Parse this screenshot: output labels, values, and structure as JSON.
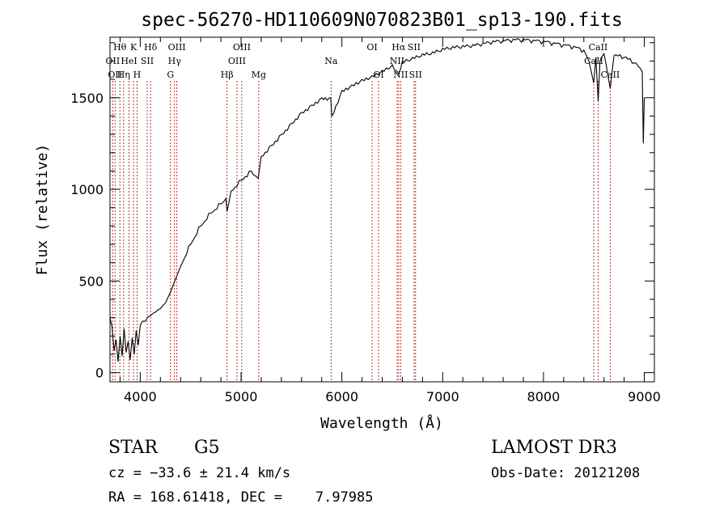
{
  "chart_data": {
    "type": "line",
    "title": "spec-56270-HD110609N070823B01_sp13-190.fits",
    "xlabel": "Wavelength (Å)",
    "ylabel": "Flux (relative)",
    "xlim": [
      3700,
      9100
    ],
    "ylim": [
      -50,
      1830
    ],
    "xticks": [
      4000,
      5000,
      6000,
      7000,
      8000,
      9000
    ],
    "yticks": [
      0,
      500,
      1000,
      1500
    ],
    "x_minor_step": 200,
    "y_minor_step": 100,
    "series": [
      {
        "name": "flux",
        "x": [
          3700,
          3720,
          3740,
          3760,
          3780,
          3800,
          3820,
          3840,
          3860,
          3880,
          3900,
          3920,
          3940,
          3960,
          3980,
          4000,
          4050,
          4100,
          4150,
          4200,
          4250,
          4300,
          4350,
          4400,
          4500,
          4600,
          4700,
          4800,
          4850,
          4861,
          4900,
          5000,
          5100,
          5170,
          5200,
          5300,
          5400,
          5500,
          5600,
          5700,
          5800,
          5890,
          5900,
          6000,
          6100,
          6200,
          6300,
          6400,
          6500,
          6563,
          6600,
          6700,
          6800,
          6900,
          7000,
          7100,
          7200,
          7300,
          7400,
          7500,
          7600,
          7700,
          7800,
          7900,
          8000,
          8100,
          8200,
          8300,
          8400,
          8450,
          8498,
          8520,
          8542,
          8560,
          8600,
          8662,
          8700,
          8800,
          8900,
          8960,
          8980,
          8990,
          9000
        ],
        "y": [
          300,
          250,
          120,
          180,
          60,
          200,
          90,
          240,
          110,
          170,
          70,
          190,
          100,
          230,
          150,
          260,
          280,
          310,
          330,
          350,
          380,
          440,
          510,
          580,
          700,
          800,
          870,
          920,
          950,
          880,
          990,
          1050,
          1100,
          1060,
          1180,
          1240,
          1300,
          1360,
          1420,
          1460,
          1500,
          1500,
          1400,
          1540,
          1570,
          1600,
          1620,
          1650,
          1680,
          1630,
          1700,
          1720,
          1740,
          1750,
          1770,
          1780,
          1785,
          1790,
          1800,
          1810,
          1815,
          1820,
          1820,
          1815,
          1810,
          1800,
          1790,
          1780,
          1760,
          1700,
          1580,
          1720,
          1480,
          1700,
          1740,
          1550,
          1730,
          1720,
          1690,
          1660,
          1640,
          1250,
          1500
        ]
      }
    ],
    "lines": [
      {
        "wl": 3727,
        "label": "OII",
        "row": 2
      },
      {
        "wl": 3750,
        "label": "OII",
        "row": 3
      },
      {
        "wl": 3798,
        "label": "Hθ",
        "row": 1
      },
      {
        "wl": 3835,
        "label": "Hη",
        "row": 3
      },
      {
        "wl": 3889,
        "label": "HeI",
        "row": 2
      },
      {
        "wl": 3934,
        "label": "K",
        "row": 1
      },
      {
        "wl": 3968,
        "label": "H",
        "row": 3
      },
      {
        "wl": 4069,
        "label": "SII",
        "row": 2
      },
      {
        "wl": 4102,
        "label": "Hδ",
        "row": 1
      },
      {
        "wl": 4300,
        "label": "G",
        "row": 3
      },
      {
        "wl": 4340,
        "label": "Hγ",
        "row": 2
      },
      {
        "wl": 4363,
        "label": "OIII",
        "row": 1
      },
      {
        "wl": 4861,
        "label": "Hβ",
        "row": 3
      },
      {
        "wl": 4959,
        "label": "OIII",
        "row": 2
      },
      {
        "wl": 5007,
        "label": "OIII",
        "row": 1
      },
      {
        "wl": 5175,
        "label": "Mg",
        "row": 3
      },
      {
        "wl": 5893,
        "label": "Na",
        "row": 2
      },
      {
        "wl": 6300,
        "label": "OI",
        "row": 1
      },
      {
        "wl": 6364,
        "label": "OI",
        "row": 3
      },
      {
        "wl": 6548,
        "label": "NII",
        "row": 2
      },
      {
        "wl": 6563,
        "label": "Hα",
        "row": 1
      },
      {
        "wl": 6583,
        "label": "NII",
        "row": 3
      },
      {
        "wl": 6716,
        "label": "SII",
        "row": 1
      },
      {
        "wl": 6731,
        "label": "SII",
        "row": 3
      },
      {
        "wl": 8498,
        "label": "CaII",
        "row": 2
      },
      {
        "wl": 8542,
        "label": "CaII",
        "row": 1
      },
      {
        "wl": 8662,
        "label": "CaII",
        "row": 3
      }
    ]
  },
  "info": {
    "object_class": "STAR",
    "subclass": "G5",
    "survey": "LAMOST DR3",
    "cz": "cz = −33.6 ± 21.4 km/s",
    "obs_date": "Obs-Date: 20121208",
    "radec": "RA = 168.61418, DEC =    7.97985"
  },
  "colors": {
    "axis": "#000000",
    "line_marker": "#b22222",
    "spectrum": "#000000"
  }
}
